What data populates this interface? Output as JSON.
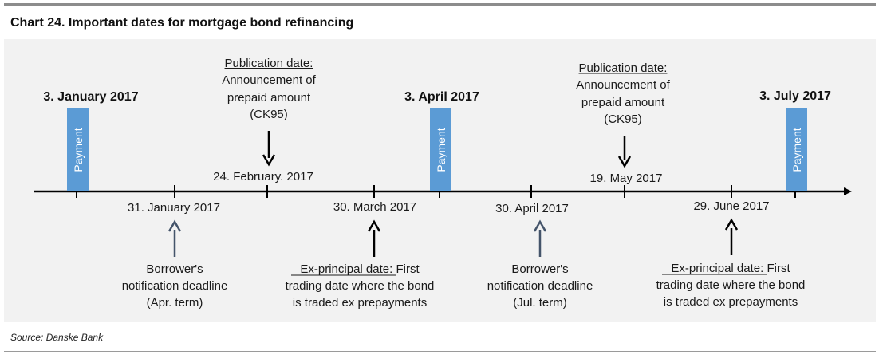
{
  "title": "Chart 24. Important dates for mortgage bond refinancing",
  "source": "Source: Danske Bank",
  "colors": {
    "payment_box": "#5b9bd5",
    "arrow_blue": "#44546a",
    "arrow_black": "#000000"
  },
  "payments": [
    {
      "date": "3. January 2017",
      "label": "Payment"
    },
    {
      "date": "3. April 2017",
      "label": "Payment"
    },
    {
      "date": "3. July 2017",
      "label": "Payment"
    }
  ],
  "events": [
    {
      "date": "31. January 2017",
      "lines": [
        "Borrower's",
        "notification deadline",
        "(Apr. term)"
      ]
    },
    {
      "date": "24. February. 2017",
      "lines": [
        "Publication date:",
        "Announcement of",
        "prepaid amount",
        "(CK95)"
      ]
    },
    {
      "date": "30. March 2017",
      "lines": [
        "Ex-principal date: First",
        "trading date where the bond",
        "is traded ex prepayments"
      ]
    },
    {
      "date": "30. April 2017",
      "lines": [
        "Borrower's",
        "notification deadline",
        "(Jul. term)"
      ]
    },
    {
      "date": "19. May 2017",
      "lines": [
        "Publication date:",
        "Announcement of",
        "prepaid amount",
        "(CK95)"
      ]
    },
    {
      "date": "29. June 2017",
      "lines": [
        "Ex-principal date: First",
        "trading date where the bond",
        "is traded ex prepayments"
      ]
    }
  ]
}
